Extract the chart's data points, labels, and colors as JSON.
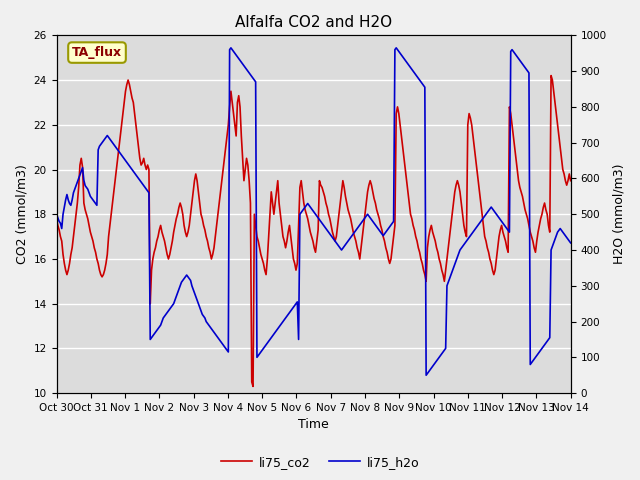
{
  "title": "Alfalfa CO2 and H2O",
  "xlabel": "Time",
  "ylabel_left": "CO2 (mmol/m3)",
  "ylabel_right": "H2O (mmol/m3)",
  "annotation_text": "TA_flux",
  "ylim_left": [
    10,
    26
  ],
  "ylim_right": [
    0,
    1000
  ],
  "yticks_left": [
    10,
    12,
    14,
    16,
    18,
    20,
    22,
    24,
    26
  ],
  "yticks_right": [
    0,
    100,
    200,
    300,
    400,
    500,
    600,
    700,
    800,
    900,
    1000
  ],
  "bg_color": "#dcdcdc",
  "fig_color": "#f0f0f0",
  "line_co2_color": "#cc0000",
  "line_h2o_color": "#0000cc",
  "legend_label_co2": "li75_co2",
  "legend_label_h2o": "li75_h2o",
  "tick_labels": [
    "Oct 30",
    "Oct 31",
    "Nov 1",
    "Nov 2",
    "Nov 3",
    "Nov 4",
    "Nov 5",
    "Nov 6",
    "Nov 7",
    "Nov 8",
    "Nov 9",
    "Nov 10",
    "Nov 11",
    "Nov 12",
    "Nov 13",
    "Nov 14"
  ],
  "co2_data": [
    17.8,
    17.5,
    17.3,
    17.0,
    16.8,
    16.2,
    15.8,
    15.5,
    15.3,
    15.5,
    15.8,
    16.2,
    16.5,
    17.0,
    17.5,
    18.0,
    18.5,
    19.2,
    20.2,
    20.5,
    20.1,
    18.5,
    18.2,
    18.0,
    17.8,
    17.5,
    17.2,
    17.0,
    16.8,
    16.5,
    16.3,
    16.0,
    15.8,
    15.5,
    15.3,
    15.2,
    15.3,
    15.5,
    15.8,
    16.2,
    17.0,
    17.5,
    18.0,
    18.5,
    19.0,
    19.5,
    20.0,
    20.5,
    21.0,
    21.5,
    22.0,
    22.5,
    23.0,
    23.5,
    23.8,
    24.0,
    23.8,
    23.5,
    23.2,
    23.0,
    22.5,
    22.0,
    21.5,
    21.0,
    20.5,
    20.2,
    20.3,
    20.5,
    20.2,
    20.0,
    20.2,
    20.0,
    14.0,
    15.5,
    16.0,
    16.3,
    16.5,
    16.8,
    17.0,
    17.3,
    17.5,
    17.2,
    17.0,
    16.8,
    16.5,
    16.2,
    16.0,
    16.2,
    16.5,
    16.8,
    17.2,
    17.5,
    17.8,
    18.0,
    18.3,
    18.5,
    18.3,
    18.0,
    17.5,
    17.2,
    17.0,
    17.2,
    17.5,
    18.0,
    18.5,
    19.0,
    19.5,
    19.8,
    19.5,
    19.0,
    18.5,
    18.0,
    17.8,
    17.5,
    17.3,
    17.0,
    16.8,
    16.5,
    16.3,
    16.0,
    16.2,
    16.5,
    17.0,
    17.5,
    18.0,
    18.5,
    19.0,
    19.5,
    20.0,
    20.5,
    21.0,
    21.5,
    22.0,
    22.8,
    23.5,
    23.0,
    22.5,
    22.0,
    21.5,
    23.0,
    23.3,
    22.8,
    21.5,
    20.5,
    19.5,
    20.0,
    20.5,
    20.2,
    19.5,
    18.5,
    10.5,
    10.3,
    18.0,
    17.5,
    17.0,
    16.8,
    16.5,
    16.2,
    16.0,
    15.8,
    15.5,
    15.3,
    16.0,
    17.0,
    18.0,
    19.0,
    18.5,
    18.0,
    18.5,
    19.0,
    19.5,
    18.5,
    18.0,
    17.5,
    17.0,
    16.8,
    16.5,
    16.8,
    17.2,
    17.5,
    17.0,
    16.5,
    16.0,
    15.8,
    15.5,
    15.8,
    17.5,
    19.2,
    19.5,
    19.0,
    18.5,
    18.2,
    18.0,
    17.8,
    17.5,
    17.2,
    17.0,
    16.8,
    16.5,
    16.3,
    16.8,
    17.3,
    19.5,
    19.3,
    19.2,
    19.0,
    18.8,
    18.5,
    18.3,
    18.0,
    17.8,
    17.5,
    17.2,
    17.0,
    16.8,
    17.0,
    17.5,
    18.0,
    18.5,
    19.0,
    19.5,
    19.2,
    18.8,
    18.5,
    18.2,
    18.0,
    17.8,
    17.5,
    17.2,
    17.0,
    16.8,
    16.5,
    16.3,
    16.0,
    16.5,
    17.0,
    17.5,
    18.0,
    18.5,
    19.0,
    19.3,
    19.5,
    19.3,
    19.0,
    18.7,
    18.5,
    18.2,
    18.0,
    17.8,
    17.5,
    17.3,
    17.0,
    16.8,
    16.5,
    16.3,
    16.0,
    15.8,
    16.0,
    16.5,
    17.0,
    17.5,
    22.5,
    22.8,
    22.5,
    22.0,
    21.5,
    21.0,
    20.5,
    20.0,
    19.5,
    19.0,
    18.5,
    18.0,
    17.8,
    17.5,
    17.3,
    17.0,
    16.8,
    16.5,
    16.3,
    16.0,
    15.8,
    15.5,
    15.3,
    15.0,
    16.5,
    17.0,
    17.3,
    17.5,
    17.2,
    17.0,
    16.8,
    16.5,
    16.3,
    16.0,
    15.8,
    15.5,
    15.3,
    15.0,
    15.5,
    16.0,
    16.5,
    17.0,
    17.5,
    18.0,
    18.5,
    19.0,
    19.3,
    19.5,
    19.3,
    19.0,
    18.5,
    18.0,
    17.5,
    17.2,
    17.0,
    22.0,
    22.5,
    22.3,
    22.0,
    21.5,
    21.0,
    20.5,
    20.0,
    19.5,
    19.0,
    18.5,
    18.0,
    17.5,
    17.0,
    16.8,
    16.5,
    16.3,
    16.0,
    15.8,
    15.5,
    15.3,
    15.5,
    16.0,
    16.5,
    17.0,
    17.3,
    17.5,
    17.2,
    17.0,
    16.8,
    16.5,
    16.3,
    22.8,
    22.5,
    22.0,
    21.5,
    21.0,
    20.5,
    20.0,
    19.5,
    19.2,
    19.0,
    18.8,
    18.5,
    18.2,
    18.0,
    17.8,
    17.5,
    17.2,
    17.0,
    16.8,
    16.5,
    16.3,
    16.8,
    17.2,
    17.5,
    17.8,
    18.0,
    18.3,
    18.5,
    18.2,
    18.0,
    17.5,
    17.2,
    24.2,
    24.0,
    23.5,
    23.0,
    22.5,
    22.0,
    21.5,
    21.0,
    20.5,
    20.0,
    19.8,
    19.5,
    19.3,
    19.5,
    19.8,
    19.5
  ],
  "h2o_data": [
    500,
    490,
    480,
    475,
    460,
    500,
    520,
    540,
    555,
    540,
    530,
    525,
    540,
    560,
    570,
    580,
    590,
    600,
    610,
    620,
    630,
    595,
    580,
    575,
    570,
    560,
    550,
    545,
    540,
    535,
    530,
    525,
    680,
    690,
    695,
    700,
    705,
    710,
    715,
    720,
    715,
    710,
    705,
    700,
    695,
    690,
    685,
    680,
    675,
    670,
    665,
    660,
    655,
    650,
    645,
    640,
    635,
    630,
    625,
    620,
    615,
    610,
    605,
    600,
    595,
    590,
    585,
    580,
    575,
    570,
    565,
    560,
    150,
    155,
    160,
    165,
    170,
    175,
    180,
    185,
    190,
    200,
    210,
    215,
    220,
    225,
    230,
    235,
    240,
    245,
    250,
    260,
    270,
    280,
    290,
    300,
    310,
    315,
    320,
    325,
    330,
    325,
    320,
    315,
    300,
    290,
    280,
    270,
    260,
    250,
    240,
    230,
    220,
    215,
    210,
    200,
    195,
    190,
    185,
    180,
    175,
    170,
    165,
    160,
    155,
    150,
    145,
    140,
    135,
    130,
    125,
    120,
    115,
    960,
    965,
    960,
    955,
    950,
    945,
    940,
    935,
    930,
    925,
    920,
    915,
    910,
    905,
    900,
    895,
    890,
    885,
    880,
    875,
    870,
    100,
    105,
    110,
    115,
    120,
    125,
    130,
    135,
    140,
    145,
    150,
    155,
    160,
    165,
    170,
    175,
    180,
    185,
    190,
    195,
    200,
    205,
    210,
    215,
    220,
    225,
    230,
    235,
    240,
    245,
    250,
    255,
    150,
    500,
    505,
    510,
    515,
    520,
    525,
    530,
    525,
    520,
    515,
    510,
    505,
    500,
    495,
    490,
    485,
    480,
    475,
    470,
    465,
    460,
    455,
    450,
    445,
    440,
    435,
    430,
    425,
    420,
    415,
    410,
    405,
    400,
    405,
    410,
    415,
    420,
    425,
    430,
    435,
    440,
    445,
    450,
    455,
    460,
    465,
    470,
    475,
    480,
    485,
    490,
    495,
    500,
    495,
    490,
    485,
    480,
    475,
    470,
    465,
    460,
    455,
    450,
    445,
    440,
    445,
    450,
    455,
    460,
    465,
    470,
    475,
    480,
    960,
    965,
    960,
    955,
    950,
    945,
    940,
    935,
    930,
    925,
    920,
    915,
    910,
    905,
    900,
    895,
    890,
    885,
    880,
    875,
    870,
    865,
    860,
    855,
    50,
    55,
    60,
    65,
    70,
    75,
    80,
    85,
    90,
    95,
    100,
    105,
    110,
    115,
    120,
    125,
    300,
    310,
    320,
    330,
    340,
    350,
    360,
    370,
    380,
    390,
    400,
    405,
    410,
    415,
    420,
    425,
    430,
    435,
    440,
    445,
    450,
    455,
    460,
    465,
    470,
    475,
    480,
    485,
    490,
    495,
    500,
    505,
    510,
    515,
    520,
    515,
    510,
    505,
    500,
    495,
    490,
    485,
    480,
    475,
    470,
    465,
    460,
    455,
    450,
    955,
    960,
    955,
    950,
    945,
    940,
    935,
    930,
    925,
    920,
    915,
    910,
    905,
    900,
    895,
    80,
    85,
    90,
    95,
    100,
    105,
    110,
    115,
    120,
    125,
    130,
    135,
    140,
    145,
    150,
    155,
    400,
    410,
    420,
    430,
    440,
    450,
    455,
    460,
    455,
    450,
    445,
    440,
    435,
    430,
    425,
    420
  ]
}
